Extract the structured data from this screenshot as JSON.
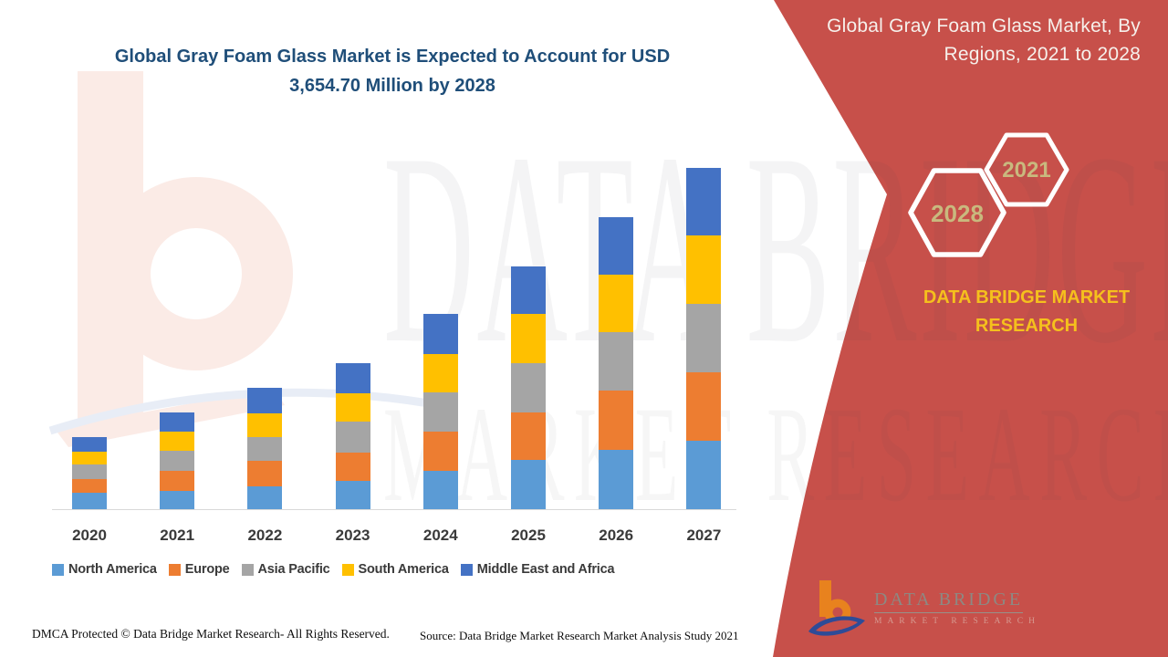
{
  "header": {
    "title_line1": "Global Gray Foam Glass Market is Expected to Account for USD",
    "title_line2": "3,654.70 Million by 2028"
  },
  "side_panel": {
    "title": "Global Gray Foam Glass Market, By Regions, 2021 to 2028",
    "hexagon_labels": [
      "2028",
      "2021"
    ],
    "brand_name": "DATA BRIDGE MARKET RESEARCH",
    "logo_title": "DATA BRIDGE",
    "logo_subtitle": "MARKET RESEARCH"
  },
  "watermark": {
    "line1": "DATA BRIDGE",
    "line2": "MARKET RESEARCH"
  },
  "footer": {
    "dmca": "DMCA Protected © Data Bridge Market Research- All Rights Reserved.",
    "source": "Source: Data Bridge Market Research Market Analysis Study 2021"
  },
  "colors": {
    "panel_red": "#C7504A",
    "title_blue": "#1F4E79",
    "brand_yellow": "#F5C01D",
    "hexagon_text": "#C9B97E",
    "axis_text": "#3A3A3A"
  },
  "chart_data": {
    "type": "bar",
    "stacked": true,
    "title": "Global Gray Foam Glass Market is Expected to Account for USD 3,654.70 Million by 2028",
    "subtitle": "Global Gray Foam Glass Market, By Regions, 2021 to 2028",
    "projected_2028_total_usd_million": 3654.7,
    "categories": [
      "2020",
      "2021",
      "2022",
      "2023",
      "2024",
      "2025",
      "2026",
      "2027"
    ],
    "series": [
      {
        "name": "North America",
        "color": "#5B9BD5",
        "values": [
          18,
          20,
          25,
          31,
          42,
          54,
          65,
          75
        ]
      },
      {
        "name": "Europe",
        "color": "#ED7D31",
        "values": [
          15,
          22,
          28,
          31,
          43,
          52,
          65,
          75
        ]
      },
      {
        "name": "Asia Pacific",
        "color": "#A5A5A5",
        "values": [
          16,
          22,
          26,
          34,
          43,
          54,
          64,
          75
        ]
      },
      {
        "name": "South America",
        "color": "#FFC000",
        "values": [
          14,
          21,
          26,
          31,
          42,
          54,
          63,
          75
        ]
      },
      {
        "name": "Middle East and Africa",
        "color": "#4472C4",
        "values": [
          16,
          21,
          28,
          33,
          44,
          52,
          63,
          74
        ]
      }
    ],
    "stack_totals": [
      79,
      106,
      133,
      160,
      214,
      266,
      320,
      374
    ],
    "value_note": "No numeric y-axis shown; values are relative stacked-segment heights measured in screen pixels",
    "xlabel": "",
    "ylabel": "",
    "ylim": [
      0,
      400
    ],
    "grid": false,
    "legend_position": "bottom"
  }
}
